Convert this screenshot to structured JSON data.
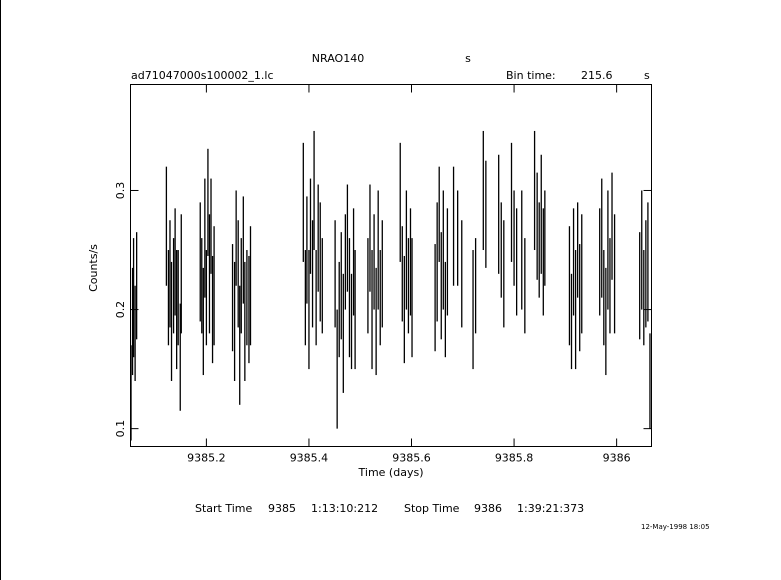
{
  "chart_data": {
    "type": "errorbar",
    "title": "NRAO140",
    "subtitle": "s",
    "file_label": "ad71047000s100002_1.lc",
    "bin_time_label": "Bin time:",
    "bin_time": 215.6,
    "bin_time_unit": "s",
    "x_label": "Time (days)",
    "y_label": "Counts/s",
    "start_label": "Start Time",
    "start_day": "9385",
    "start_clock": "1:13:10:212",
    "stop_label": "Stop Time",
    "stop_day": "9386",
    "stop_clock": "1:39:21:373",
    "timestamp": "12-May-1998 18:05",
    "color": "#000000",
    "xlim": [
      9385.052,
      9386.068
    ],
    "xticks": [
      9385.2,
      9385.4,
      9385.6,
      9385.8,
      9386
    ],
    "ylim": [
      0.085,
      0.389
    ],
    "yticks": [
      0.1,
      0.2,
      0.3
    ],
    "x": [
      9385.053,
      9385.056,
      9385.058,
      9385.061,
      9385.064,
      9385.122,
      9385.126,
      9385.129,
      9385.132,
      9385.136,
      9385.139,
      9385.142,
      9385.145,
      9385.149,
      9385.151,
      9385.188,
      9385.191,
      9385.194,
      9385.197,
      9385.2,
      9385.203,
      9385.206,
      9385.209,
      9385.212,
      9385.215,
      9385.251,
      9385.255,
      9385.258,
      9385.262,
      9385.265,
      9385.268,
      9385.272,
      9385.275,
      9385.279,
      9385.283,
      9385.286,
      9385.389,
      9385.393,
      9385.396,
      9385.4,
      9385.403,
      9385.407,
      9385.41,
      9385.414,
      9385.418,
      9385.422,
      9385.426,
      9385.451,
      9385.455,
      9385.459,
      9385.463,
      9385.467,
      9385.471,
      9385.475,
      9385.479,
      9385.483,
      9385.487,
      9385.49,
      9385.515,
      9385.519,
      9385.523,
      9385.527,
      9385.531,
      9385.535,
      9385.539,
      9385.543,
      9385.578,
      9385.582,
      9385.586,
      9385.59,
      9385.594,
      9385.598,
      9385.601,
      9385.646,
      9385.65,
      9385.654,
      9385.658,
      9385.662,
      9385.666,
      9385.67,
      9385.682,
      9385.69,
      9385.698,
      9385.72,
      9385.725,
      9385.74,
      9385.745,
      9385.77,
      9385.775,
      9385.78,
      9385.795,
      9385.8,
      9385.805,
      9385.815,
      9385.821,
      9385.84,
      9385.845,
      9385.849,
      9385.853,
      9385.857,
      9385.86,
      9385.908,
      9385.912,
      9385.916,
      9385.92,
      9385.924,
      9385.928,
      9385.932,
      9385.967,
      9385.971,
      9385.975,
      9385.979,
      9385.983,
      9385.987,
      9385.991,
      9385.996,
      9386.045,
      9386.049,
      9386.053,
      9386.057,
      9386.061,
      9386.065
    ],
    "values": [
      0.13,
      0.19,
      0.21,
      0.18,
      0.22,
      0.27,
      0.21,
      0.23,
      0.19,
      0.22,
      0.24,
      0.2,
      0.21,
      0.16,
      0.23,
      0.24,
      0.22,
      0.19,
      0.26,
      0.21,
      0.29,
      0.23,
      0.27,
      0.2,
      0.22,
      0.21,
      0.19,
      0.26,
      0.23,
      0.17,
      0.22,
      0.25,
      0.19,
      0.21,
      0.2,
      0.22,
      0.29,
      0.21,
      0.25,
      0.2,
      0.27,
      0.23,
      0.3,
      0.21,
      0.26,
      0.24,
      0.22,
      0.23,
      0.15,
      0.2,
      0.22,
      0.18,
      0.24,
      0.26,
      0.21,
      0.19,
      0.24,
      0.2,
      0.22,
      0.26,
      0.2,
      0.24,
      0.19,
      0.25,
      0.21,
      0.23,
      0.29,
      0.23,
      0.2,
      0.25,
      0.22,
      0.24,
      0.21,
      0.21,
      0.24,
      0.28,
      0.22,
      0.25,
      0.2,
      0.24,
      0.27,
      0.26,
      0.23,
      0.2,
      0.22,
      0.3,
      0.28,
      0.28,
      0.25,
      0.23,
      0.29,
      0.26,
      0.24,
      0.25,
      0.22,
      0.3,
      0.27,
      0.25,
      0.28,
      0.24,
      0.26,
      0.22,
      0.19,
      0.24,
      0.2,
      0.25,
      0.21,
      0.23,
      0.24,
      0.26,
      0.21,
      0.19,
      0.25,
      0.22,
      0.27,
      0.23,
      0.22,
      0.25,
      0.21,
      0.23,
      0.24,
      0.14
    ],
    "errors": [
      0.04,
      0.045,
      0.05,
      0.04,
      0.045,
      0.05,
      0.04,
      0.045,
      0.05,
      0.04,
      0.045,
      0.05,
      0.04,
      0.045,
      0.05,
      0.05,
      0.04,
      0.045,
      0.05,
      0.04,
      0.045,
      0.05,
      0.04,
      0.045,
      0.05,
      0.045,
      0.05,
      0.04,
      0.045,
      0.05,
      0.04,
      0.045,
      0.05,
      0.04,
      0.045,
      0.05,
      0.05,
      0.04,
      0.045,
      0.05,
      0.04,
      0.045,
      0.05,
      0.04,
      0.045,
      0.05,
      0.04,
      0.045,
      0.05,
      0.04,
      0.045,
      0.05,
      0.04,
      0.045,
      0.05,
      0.04,
      0.045,
      0.05,
      0.04,
      0.045,
      0.05,
      0.04,
      0.045,
      0.05,
      0.04,
      0.045,
      0.05,
      0.04,
      0.045,
      0.05,
      0.04,
      0.045,
      0.05,
      0.045,
      0.05,
      0.04,
      0.045,
      0.05,
      0.04,
      0.045,
      0.05,
      0.04,
      0.045,
      0.05,
      0.04,
      0.05,
      0.045,
      0.05,
      0.04,
      0.045,
      0.05,
      0.04,
      0.045,
      0.05,
      0.04,
      0.05,
      0.045,
      0.04,
      0.05,
      0.045,
      0.04,
      0.05,
      0.04,
      0.045,
      0.05,
      0.04,
      0.045,
      0.05,
      0.045,
      0.05,
      0.04,
      0.045,
      0.05,
      0.04,
      0.045,
      0.05,
      0.045,
      0.05,
      0.04,
      0.045,
      0.05,
      0.04
    ]
  }
}
